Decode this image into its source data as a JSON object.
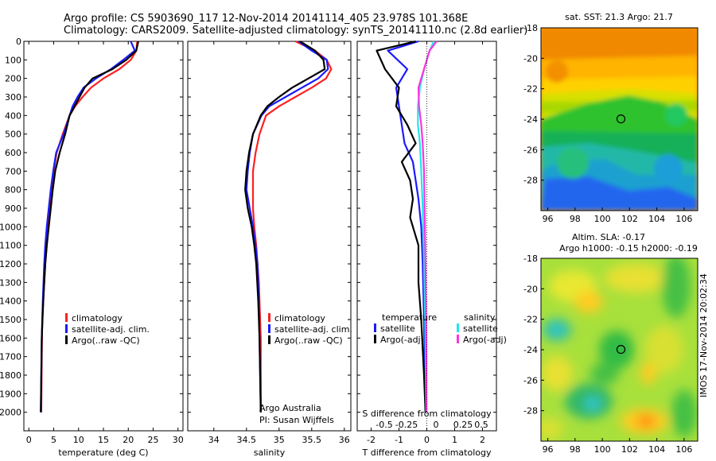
{
  "header": {
    "line1": "Argo profile: CS 5903690_117 12-Nov-2014 20141114_405 23.978S 101.368E",
    "line2": "Climatology: CARS2009. Satellite-adjusted climatology: synTS_20141110.nc (2.8d earlier)"
  },
  "stamp": "IMOS 17-Nov-2014 20:02:34",
  "colors": {
    "climatology": "#ff2020",
    "satellite": "#1a1aff",
    "argo": "#000000",
    "satellite_sal": "#22e6ee",
    "argo_sal": "#ff33e0"
  },
  "chart_data": [
    {
      "type": "line",
      "xlabel": "temperature (deg C)",
      "ylabel": "",
      "xlim": [
        -1,
        31
      ],
      "ylim": [
        2100,
        0
      ],
      "xticks": [
        0,
        5,
        10,
        15,
        20,
        25,
        30
      ],
      "yticks": [
        0,
        100,
        200,
        300,
        400,
        500,
        600,
        700,
        800,
        900,
        1000,
        1100,
        1200,
        1300,
        1400,
        1500,
        1600,
        1700,
        1800,
        1900,
        2000
      ],
      "legend": [
        "climatology",
        "satellite-adj. clim.",
        "Argo(..raw -QC)"
      ],
      "series": [
        {
          "name": "climatology",
          "color": "climatology",
          "x": [
            21.8,
            21.6,
            20.5,
            18.2,
            15.0,
            12.5,
            10.8,
            9.3,
            8.2,
            6.8,
            5.6,
            5.0,
            4.6,
            4.2,
            3.9,
            3.6,
            3.3,
            3.1,
            2.9,
            2.7,
            2.6,
            2.5
          ],
          "y": [
            0,
            50,
            100,
            150,
            200,
            250,
            300,
            350,
            400,
            500,
            600,
            700,
            800,
            900,
            1000,
            1100,
            1200,
            1300,
            1400,
            1500,
            1700,
            2000
          ]
        },
        {
          "name": "satellite-adj. clim.",
          "color": "satellite",
          "x": [
            20.5,
            21.3,
            19.0,
            16.5,
            13.5,
            11.0,
            9.8,
            8.8,
            8.2,
            7.0,
            5.5,
            4.9,
            4.4,
            4.0,
            3.6,
            3.3,
            3.1,
            2.8,
            2.6,
            2.5,
            2.4
          ],
          "y": [
            0,
            50,
            100,
            150,
            200,
            250,
            300,
            350,
            400,
            500,
            600,
            700,
            800,
            900,
            1000,
            1100,
            1200,
            1400,
            1600,
            1800,
            2000
          ]
        },
        {
          "name": "Argo(..raw -QC)",
          "color": "argo",
          "x": [
            22.0,
            21.6,
            19.6,
            16.8,
            12.8,
            11.2,
            10.2,
            9.2,
            8.2,
            7.3,
            6.2,
            5.3,
            4.8,
            4.4,
            4.0,
            3.6,
            3.3,
            3.1,
            2.9,
            2.6,
            2.5,
            2.4
          ],
          "y": [
            0,
            50,
            100,
            150,
            200,
            250,
            300,
            350,
            400,
            500,
            600,
            700,
            800,
            900,
            1000,
            1100,
            1200,
            1300,
            1400,
            1600,
            1800,
            2000
          ]
        }
      ]
    },
    {
      "type": "line",
      "xlabel": "salinity",
      "ylabel": "",
      "xlim": [
        33.6,
        36.1
      ],
      "ylim": [
        2100,
        0
      ],
      "xticks": [
        34,
        34.5,
        35,
        35.5,
        36
      ],
      "legend": [
        "climatology",
        "satellite-adj. clim.",
        "Argo(..raw -QC)"
      ],
      "annotations": [
        "Argo Australia",
        "PI: Susan Wijffels"
      ],
      "series": [
        {
          "name": "climatology",
          "color": "climatology",
          "x": [
            35.25,
            35.55,
            35.73,
            35.8,
            35.72,
            35.5,
            35.25,
            35.0,
            34.8,
            34.7,
            34.64,
            34.6,
            34.6,
            34.6,
            34.62,
            34.65,
            34.67,
            34.69,
            34.7,
            34.72,
            34.72,
            34.72
          ],
          "y": [
            0,
            50,
            100,
            150,
            200,
            250,
            300,
            350,
            400,
            500,
            600,
            700,
            800,
            900,
            1000,
            1100,
            1200,
            1300,
            1400,
            1600,
            1800,
            2000
          ]
        },
        {
          "name": "satellite-adj. clim.",
          "color": "satellite",
          "x": [
            35.3,
            35.5,
            35.73,
            35.75,
            35.6,
            35.35,
            35.1,
            34.85,
            34.73,
            34.6,
            34.55,
            34.52,
            34.5,
            34.55,
            34.6,
            34.64,
            34.67,
            34.69,
            34.7,
            34.71,
            34.72
          ],
          "y": [
            0,
            50,
            100,
            150,
            200,
            250,
            300,
            350,
            400,
            500,
            600,
            700,
            800,
            900,
            1000,
            1100,
            1200,
            1400,
            1600,
            1800,
            2000
          ]
        },
        {
          "name": "Argo(..raw -QC)",
          "color": "argo",
          "x": [
            35.32,
            35.55,
            35.68,
            35.7,
            35.45,
            35.2,
            35.0,
            34.82,
            34.72,
            34.6,
            34.54,
            34.5,
            34.48,
            34.52,
            34.58,
            34.62,
            34.65,
            34.68,
            34.7,
            34.71,
            34.72
          ],
          "y": [
            0,
            50,
            100,
            150,
            200,
            250,
            300,
            350,
            400,
            500,
            600,
            700,
            800,
            900,
            1000,
            1100,
            1200,
            1400,
            1600,
            1800,
            2000
          ]
        }
      ]
    },
    {
      "type": "line",
      "xlabel": "T difference from climatology",
      "ylabel": "",
      "xlim": [
        -2.5,
        2.5
      ],
      "ylim": [
        2100,
        0
      ],
      "xticks": [
        -2,
        -1,
        0,
        1,
        2
      ],
      "xlabel2": "S difference from climatology",
      "xticks2": [
        "-0.5",
        "-0.25",
        "0",
        "0.25",
        "0.5"
      ],
      "legend_titles": [
        "temperature",
        "salinity"
      ],
      "legend": [
        "satellite",
        "Argo(-adj)",
        "satellite",
        "Argo(-adj)"
      ],
      "series": [
        {
          "name": "satellite",
          "color": "satellite",
          "x": [
            -0.3,
            -1.4,
            -0.7,
            -1.1,
            -1.0,
            -0.9,
            -0.8,
            -0.5,
            -0.4,
            -0.3,
            -0.2,
            -0.15,
            -0.1,
            -0.05
          ],
          "y": [
            0,
            50,
            150,
            250,
            350,
            450,
            550,
            650,
            750,
            850,
            1000,
            1200,
            1500,
            2000
          ]
        },
        {
          "name": "Argo(-adj)",
          "color": "argo",
          "x": [
            -0.4,
            -1.8,
            -1.5,
            -1.0,
            -1.1,
            -0.7,
            -0.4,
            -0.9,
            -0.6,
            -0.5,
            -0.6,
            -0.3,
            -0.3,
            -0.2,
            -0.1,
            -0.05
          ],
          "y": [
            0,
            50,
            150,
            250,
            350,
            450,
            550,
            650,
            750,
            850,
            950,
            1100,
            1300,
            1500,
            1800,
            2000
          ]
        },
        {
          "name": "satellite",
          "color": "satellite_sal",
          "x": [
            0.25,
            0.1,
            -0.1,
            -0.25,
            -0.32,
            -0.32,
            -0.25,
            -0.2,
            -0.15,
            -0.1,
            -0.05,
            -0.02
          ],
          "y": [
            0,
            50,
            150,
            250,
            350,
            450,
            550,
            700,
            900,
            1200,
            1600,
            2000
          ]
        },
        {
          "name": "Argo(-adj)",
          "color": "argo_sal",
          "x": [
            0.35,
            0.1,
            -0.1,
            -0.3,
            -0.28,
            -0.2,
            -0.15,
            -0.1,
            -0.08,
            -0.05,
            -0.02,
            -0.01
          ],
          "y": [
            0,
            50,
            150,
            250,
            350,
            450,
            550,
            700,
            900,
            1200,
            1600,
            2000
          ]
        }
      ]
    },
    {
      "type": "heatmap",
      "title": "sat. SST: 21.3  Argo: 21.7",
      "xlim": [
        95.5,
        107
      ],
      "ylim": [
        -30,
        -18
      ],
      "xticks": [
        96,
        98,
        100,
        102,
        104,
        106
      ],
      "yticks": [
        -28,
        -26,
        -24,
        -22,
        -20,
        -18
      ],
      "marker": [
        101.368,
        -23.978
      ]
    },
    {
      "type": "heatmap",
      "title": "Altim. SLA: -0.17",
      "subtitle": "Argo h1000: -0.15  h2000: -0.19",
      "xlim": [
        95.5,
        107
      ],
      "ylim": [
        -30,
        -18
      ],
      "xticks": [
        96,
        98,
        100,
        102,
        104,
        106
      ],
      "yticks": [
        -28,
        -26,
        -24,
        -22,
        -20,
        -18
      ],
      "marker": [
        101.368,
        -23.978
      ]
    }
  ]
}
